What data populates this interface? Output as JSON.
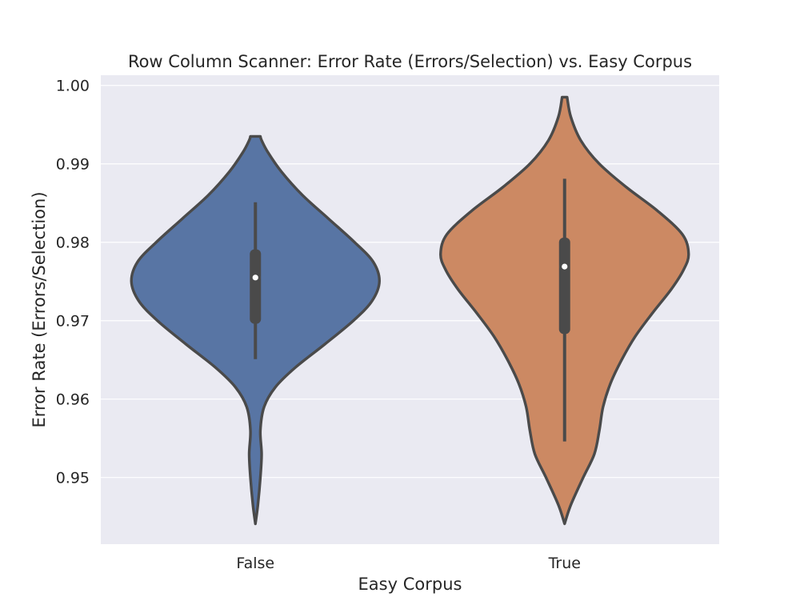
{
  "chart_data": {
    "type": "violin",
    "title": "Row Column Scanner: Error Rate (Errors/Selection) vs. Easy Corpus",
    "xlabel": "Easy Corpus",
    "ylabel": "Error Rate (Errors/Selection)",
    "categories": [
      "False",
      "True"
    ],
    "ylim": [
      0.9415,
      1.0013
    ],
    "yticks": [
      0.95,
      0.96,
      0.97,
      0.98,
      0.99,
      1.0
    ],
    "ytick_labels": [
      "0.95",
      "0.96",
      "0.97",
      "0.98",
      "0.99",
      "1.00"
    ],
    "grid": true,
    "legend": "none",
    "background": "#eaeaf2",
    "colors": [
      "#5875a4",
      "#cc8963"
    ],
    "violins": [
      {
        "category": "False",
        "min": 0.9441,
        "max": 0.9935,
        "whisker_low": 0.9651,
        "whisker_high": 0.9851,
        "q1": 0.9696,
        "q3": 0.9791,
        "median": 0.9755,
        "density": [
          {
            "y": 0.9441,
            "w": 0.0
          },
          {
            "y": 0.9465,
            "w": 0.02
          },
          {
            "y": 0.95,
            "w": 0.04
          },
          {
            "y": 0.953,
            "w": 0.05
          },
          {
            "y": 0.956,
            "w": 0.04
          },
          {
            "y": 0.959,
            "w": 0.07
          },
          {
            "y": 0.9615,
            "w": 0.16
          },
          {
            "y": 0.964,
            "w": 0.32
          },
          {
            "y": 0.967,
            "w": 0.56
          },
          {
            "y": 0.97,
            "w": 0.79
          },
          {
            "y": 0.9725,
            "w": 0.94
          },
          {
            "y": 0.975,
            "w": 1.0
          },
          {
            "y": 0.9775,
            "w": 0.95
          },
          {
            "y": 0.98,
            "w": 0.8
          },
          {
            "y": 0.983,
            "w": 0.59
          },
          {
            "y": 0.986,
            "w": 0.38
          },
          {
            "y": 0.989,
            "w": 0.21
          },
          {
            "y": 0.9915,
            "w": 0.1
          },
          {
            "y": 0.993,
            "w": 0.05
          },
          {
            "y": 0.9935,
            "w": 0.04
          }
        ]
      },
      {
        "category": "True",
        "min": 0.9441,
        "max": 0.9985,
        "whisker_low": 0.9546,
        "whisker_high": 0.9881,
        "q1": 0.9683,
        "q3": 0.9806,
        "median": 0.9769,
        "density": [
          {
            "y": 0.9441,
            "w": 0.0
          },
          {
            "y": 0.9465,
            "w": 0.05
          },
          {
            "y": 0.95,
            "w": 0.15
          },
          {
            "y": 0.953,
            "w": 0.24
          },
          {
            "y": 0.956,
            "w": 0.28
          },
          {
            "y": 0.959,
            "w": 0.31
          },
          {
            "y": 0.962,
            "w": 0.37
          },
          {
            "y": 0.965,
            "w": 0.46
          },
          {
            "y": 0.968,
            "w": 0.57
          },
          {
            "y": 0.971,
            "w": 0.71
          },
          {
            "y": 0.974,
            "w": 0.86
          },
          {
            "y": 0.9765,
            "w": 0.96
          },
          {
            "y": 0.9785,
            "w": 1.0
          },
          {
            "y": 0.981,
            "w": 0.95
          },
          {
            "y": 0.984,
            "w": 0.75
          },
          {
            "y": 0.987,
            "w": 0.5
          },
          {
            "y": 0.99,
            "w": 0.28
          },
          {
            "y": 0.993,
            "w": 0.13
          },
          {
            "y": 0.996,
            "w": 0.05
          },
          {
            "y": 0.9985,
            "w": 0.02
          }
        ]
      }
    ]
  }
}
